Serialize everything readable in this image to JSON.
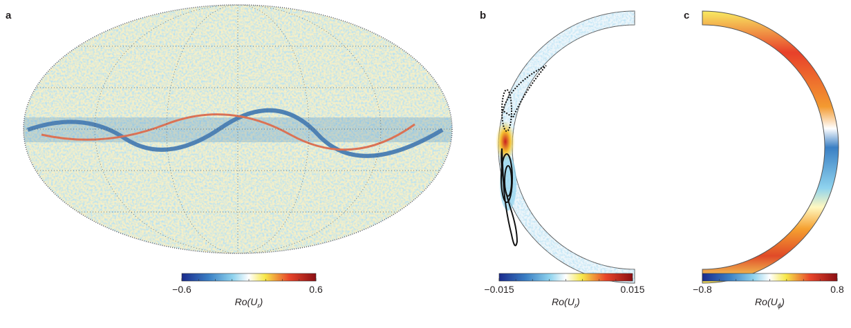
{
  "panels": [
    {
      "label": "a",
      "colorbar": {
        "lim": [
          -0.6,
          0.6
        ],
        "ticks": [
          {
            "value": -0.6,
            "label": "−0.6"
          },
          0.6
        ],
        "title": [
          "Ro(U",
          "r",
          ")"
        ]
      }
    },
    {
      "label": "b",
      "colorbar": {
        "lim": [
          -0.015,
          0.015
        ],
        "ticks": [
          {
            "value": -0.015,
            "label": "−0.015"
          },
          0.015
        ],
        "title": [
          "Ro(U",
          "r",
          ")"
        ]
      }
    },
    {
      "label": "c",
      "colorbar": {
        "lim": [
          -0.8,
          0.8
        ],
        "ticks": [
          {
            "value": -0.8,
            "label": "−0.8"
          },
          0.8
        ],
        "title": [
          "Ro(U",
          "ϕ",
          ")"
        ]
      }
    }
  ]
}
